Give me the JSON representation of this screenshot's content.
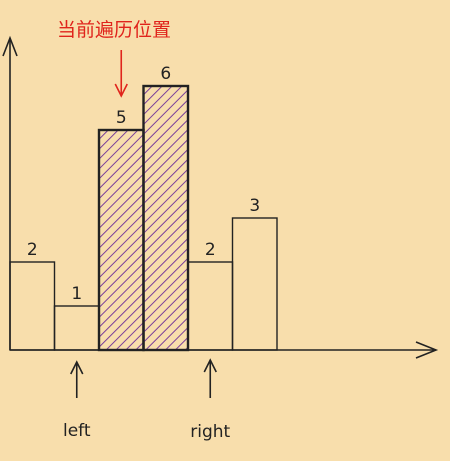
{
  "title": "当前遍历位置",
  "colors": {
    "background": "#f8deac",
    "ink": "#222222",
    "annotation": "#e0241c",
    "hatch": "#7a3f9a"
  },
  "bars": [
    {
      "label": "2",
      "height": 2,
      "highlighted": false
    },
    {
      "label": "1",
      "height": 1,
      "highlighted": false
    },
    {
      "label": "5",
      "height": 5,
      "highlighted": true
    },
    {
      "label": "6",
      "height": 6,
      "highlighted": true
    },
    {
      "label": "2",
      "height": 2,
      "highlighted": false
    },
    {
      "label": "3",
      "height": 3,
      "highlighted": false
    }
  ],
  "pointers": {
    "current": {
      "label": "当前遍历位置",
      "bar_index": 2
    },
    "left": {
      "label": "left",
      "bar_index": 1
    },
    "right": {
      "label": "right",
      "bar_index": 4
    }
  }
}
